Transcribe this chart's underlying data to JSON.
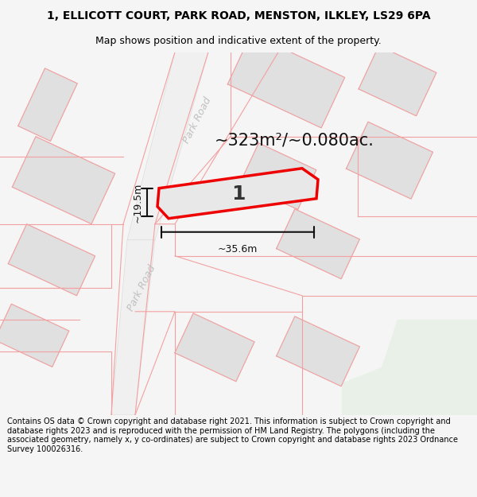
{
  "title": "1, ELLICOTT COURT, PARK ROAD, MENSTON, ILKLEY, LS29 6PA",
  "subtitle": "Map shows position and indicative extent of the property.",
  "title_fontsize": 10,
  "subtitle_fontsize": 9,
  "area_text": "~323m²/~0.080ac.",
  "width_label": "~35.6m",
  "height_label": "~19.5m",
  "plot_number": "1",
  "road_label_upper": "Park Road",
  "road_label_lower": "Park Road",
  "footer_text": "Contains OS data © Crown copyright and database right 2021. This information is subject to Crown copyright and database rights 2023 and is reproduced with the permission of HM Land Registry. The polygons (including the associated geometry, namely x, y co-ordinates) are subject to Crown copyright and database rights 2023 Ordnance Survey 100026316.",
  "bg_color": "#f5f5f5",
  "map_bg": "#ffffff",
  "building_fill": "#e0e0e0",
  "building_edge": "#cccccc",
  "road_fill": "#f0f0f0",
  "road_edge": "#dddddd",
  "pink_color": "#f4a0a0",
  "plot_edge": "#ee0000",
  "plot_fill": "#e8e8e8",
  "dim_color": "#111111",
  "road_text_color": "#c0c0c0",
  "green_area": "#e8f0e8",
  "footer_fontsize": 7.0
}
